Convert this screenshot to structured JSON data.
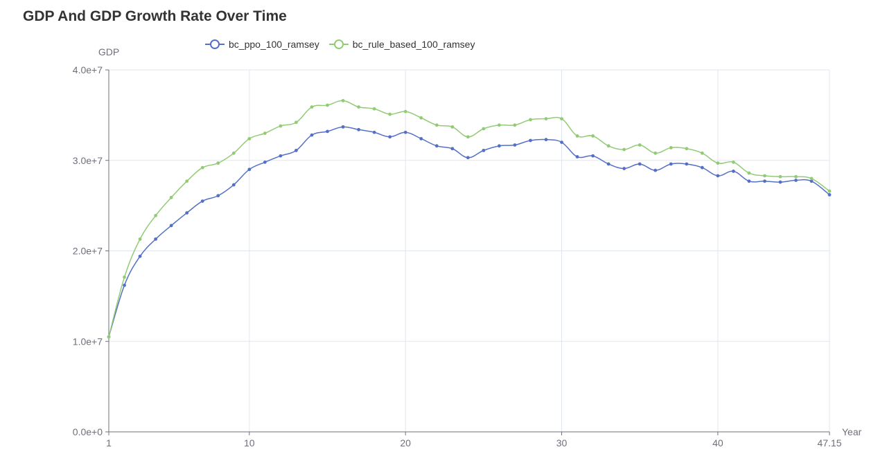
{
  "chart_data": {
    "type": "line",
    "title": "GDP And GDP Growth Rate Over Time",
    "xlabel": "Year",
    "ylabel": "GDP",
    "xlim": [
      1,
      47.15
    ],
    "ylim": [
      0,
      40000000
    ],
    "x_ticks": [
      "1",
      "10",
      "20",
      "30",
      "40",
      "47.15"
    ],
    "y_ticks": [
      "0.0e+0",
      "1.0e+7",
      "2.0e+7",
      "3.0e+7",
      "4.0e+7"
    ],
    "grid": true,
    "legend_position": "top",
    "x": [
      1,
      2,
      3,
      4,
      5,
      6,
      7,
      8,
      9,
      10,
      11,
      12,
      13,
      14,
      15,
      16,
      17,
      18,
      19,
      20,
      21,
      22,
      23,
      24,
      25,
      26,
      27,
      28,
      29,
      30,
      31,
      32,
      33,
      34,
      35,
      36,
      37,
      38,
      39,
      40,
      41,
      42,
      43,
      44,
      45,
      46,
      47.15
    ],
    "series": [
      {
        "name": "bc_ppo_100_ramsey",
        "color": "#5470c6",
        "values": [
          10500000,
          16200000,
          19400000,
          21300000,
          22800000,
          24200000,
          25500000,
          26100000,
          27300000,
          29000000,
          29800000,
          30500000,
          31100000,
          32800000,
          33200000,
          33700000,
          33400000,
          33100000,
          32600000,
          33100000,
          32400000,
          31600000,
          31300000,
          30300000,
          31100000,
          31600000,
          31700000,
          32200000,
          32300000,
          32000000,
          30400000,
          30500000,
          29600000,
          29100000,
          29600000,
          28900000,
          29600000,
          29600000,
          29200000,
          28300000,
          28800000,
          27700000,
          27700000,
          27600000,
          27800000,
          27700000,
          26200000
        ]
      },
      {
        "name": "bc_rule_based_100_ramsey",
        "color": "#91cc75",
        "values": [
          10500000,
          17100000,
          21300000,
          23900000,
          25900000,
          27700000,
          29200000,
          29700000,
          30800000,
          32400000,
          33000000,
          33800000,
          34200000,
          35900000,
          36100000,
          36600000,
          35900000,
          35700000,
          35100000,
          35400000,
          34700000,
          33900000,
          33700000,
          32600000,
          33500000,
          33900000,
          33900000,
          34500000,
          34600000,
          34600000,
          32700000,
          32700000,
          31600000,
          31200000,
          31700000,
          30800000,
          31400000,
          31300000,
          30800000,
          29700000,
          29800000,
          28600000,
          28300000,
          28200000,
          28200000,
          28000000,
          26600000
        ]
      }
    ]
  }
}
